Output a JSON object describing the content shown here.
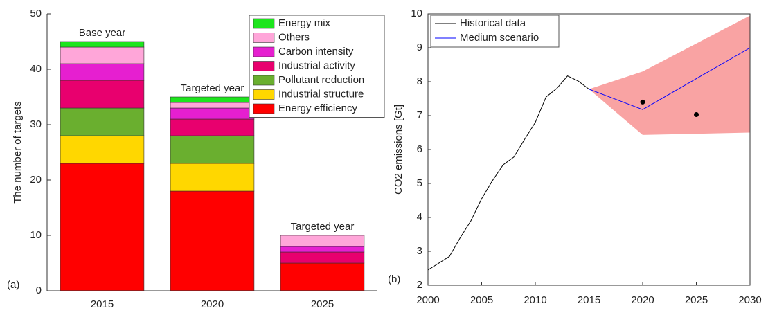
{
  "chart_data": [
    {
      "type": "bar",
      "stacked": true,
      "panel_label": "(a)",
      "ylabel": "The number of targets",
      "categories": [
        "2015",
        "2020",
        "2025"
      ],
      "annotations": [
        "Base year",
        "Targeted year",
        "Targeted year"
      ],
      "ylim": [
        0,
        50
      ],
      "yticks": [
        0,
        10,
        20,
        30,
        40,
        50
      ],
      "legend": "top-right",
      "series": [
        {
          "name": "Energy efficiency",
          "color": "#ff0000",
          "values": [
            23,
            18,
            5
          ]
        },
        {
          "name": "Industrial structure",
          "color": "#ffd700",
          "values": [
            5,
            5,
            0
          ]
        },
        {
          "name": "Pollutant reduction",
          "color": "#6aaf2f",
          "values": [
            5,
            5,
            0
          ]
        },
        {
          "name": "Industrial activity",
          "color": "#e8006e",
          "values": [
            5,
            3,
            2
          ]
        },
        {
          "name": "Carbon intensity",
          "color": "#e61fd0",
          "values": [
            3,
            2,
            1
          ]
        },
        {
          "name": "Others",
          "color": "#ffa6d9",
          "values": [
            3,
            1,
            2
          ]
        },
        {
          "name": "Energy mix",
          "color": "#1de51d",
          "values": [
            1,
            1,
            0
          ]
        }
      ]
    },
    {
      "type": "line",
      "panel_label": "(b)",
      "ylabel": "CO2 emissions [Gt]",
      "xlim": [
        2000,
        2030
      ],
      "xticks": [
        2000,
        2005,
        2010,
        2015,
        2020,
        2025,
        2030
      ],
      "ylim": [
        2,
        10
      ],
      "yticks": [
        2,
        3,
        4,
        5,
        6,
        7,
        8,
        9,
        10
      ],
      "legend": "top-left",
      "band": {
        "color": "#f9a3a3",
        "x": [
          2015,
          2020,
          2030
        ],
        "upper": [
          7.78,
          8.3,
          9.95
        ],
        "lower": [
          7.78,
          6.43,
          6.5
        ]
      },
      "series": [
        {
          "name": "Historical data",
          "color": "#000000",
          "x": [
            2000,
            2001,
            2002,
            2003,
            2004,
            2005,
            2006,
            2007,
            2008,
            2009,
            2010,
            2011,
            2012,
            2013,
            2014,
            2015
          ],
          "values": [
            2.45,
            2.65,
            2.85,
            3.4,
            3.9,
            4.55,
            5.08,
            5.55,
            5.78,
            6.3,
            6.8,
            7.55,
            7.8,
            8.17,
            8.02,
            7.78
          ]
        },
        {
          "name": "Medium scenario",
          "color": "#0000ff",
          "x": [
            2015,
            2020,
            2030
          ],
          "values": [
            7.78,
            7.18,
            9.0
          ]
        }
      ],
      "points": {
        "color": "#000000",
        "x": [
          2020,
          2025
        ],
        "y": [
          7.4,
          7.03
        ]
      }
    }
  ]
}
